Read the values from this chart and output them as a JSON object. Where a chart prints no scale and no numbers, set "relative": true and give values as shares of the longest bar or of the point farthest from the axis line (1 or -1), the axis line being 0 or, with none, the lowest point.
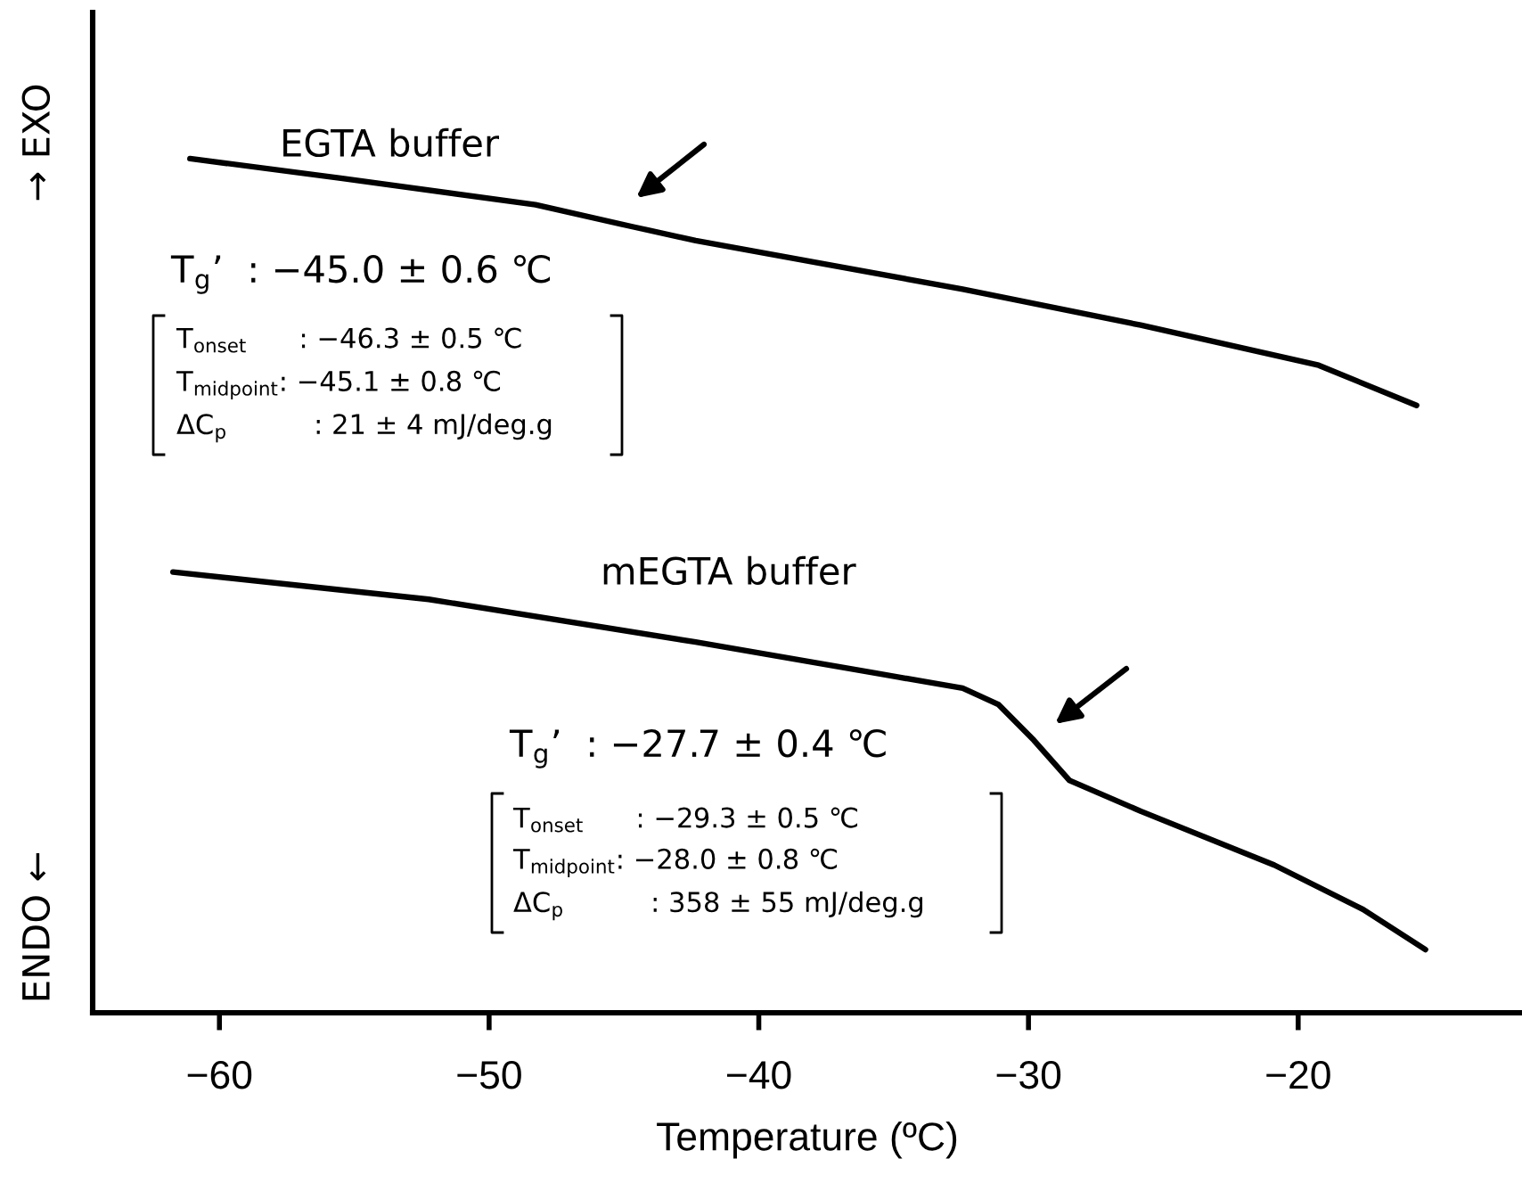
{
  "chart_data": {
    "type": "line",
    "relative": true,
    "xlabel": "Temperature (ºC)",
    "xlim": [
      -64.7,
      -11.7
    ],
    "xticks": [
      {
        "value": -60,
        "label": "−60"
      },
      {
        "value": -50,
        "label": "−50"
      },
      {
        "value": -40,
        "label": "−40"
      },
      {
        "value": -30,
        "label": "−30"
      },
      {
        "value": -20,
        "label": "−20"
      }
    ],
    "marker": "none",
    "line_style": "solid",
    "series": [
      {
        "color": "#000000",
        "x": [
          -61.09,
          -55.5,
          -48.28,
          -44.65,
          -42.34,
          -32.44,
          -25.84,
          -19.24,
          -15.61
        ],
        "values": [
          1.0,
          0.977,
          0.946,
          0.92,
          0.904,
          0.847,
          0.805,
          0.758,
          0.711
        ]
      },
      {
        "color": "#000000",
        "x": [
          -61.72,
          -52.24,
          -42.34,
          -35.74,
          -32.44,
          -31.12,
          -29.8,
          -28.48,
          -25.84,
          -20.89,
          -17.59,
          -15.28
        ],
        "values": [
          0.516,
          0.484,
          0.434,
          0.398,
          0.38,
          0.361,
          0.319,
          0.272,
          0.236,
          0.173,
          0.121,
          0.074
        ]
      }
    ],
    "annotations": [
      "EGTA buffer",
      "mEGTA buffer",
      "T$_{g}$’  : −45.0 ± 0.6 ℃",
      "T$_{onset}$      : −46.3 ± 0.5 ℃",
      "T$_{midpoint}$: −45.1 ± 0.8 ℃",
      "ΔC$_{p}$          : 21 ± 4 mJ/deg.g",
      "T$_{g}$’  : −27.7 ± 0.4 ℃",
      "T$_{onset}$      : −29.3 ± 0.5 ℃",
      "T$_{midpoint}$: −28.0 ± 0.8 ℃",
      "ΔC$_{p}$          : 358 ± 55 mJ/deg.g",
      "→ EXO",
      "ENDO ←"
    ]
  }
}
